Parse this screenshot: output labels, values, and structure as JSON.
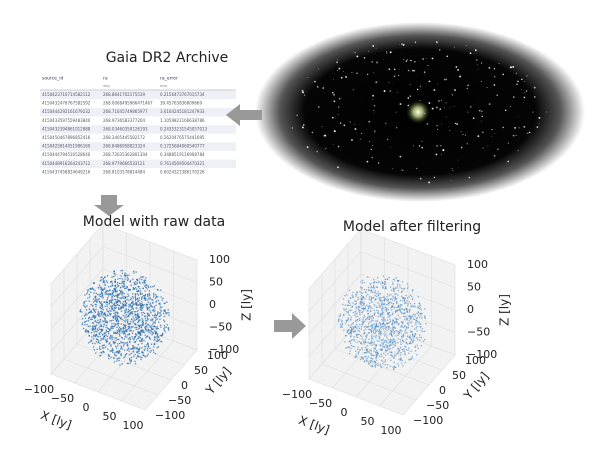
{
  "archive": {
    "title": "Gaia DR2 Archive",
    "table": {
      "headers": [
        "source_id",
        "ra",
        "ra_error"
      ],
      "units": [
        "",
        "deg",
        "mas"
      ],
      "rows": [
        [
          "4150423710714582112",
          "268.8641702175539",
          "0.2156473767015734"
        ],
        [
          "4150432476767582592",
          "268.0068495966471467",
          "39.45763836809669"
        ],
        [
          "4150444292161679232",
          "268.71645749865977",
          "3.6164245181247933"
        ],
        [
          "4150433597559483840",
          "268.9736583377204",
          "1.1059821166638786"
        ],
        [
          "4150432394861012888",
          "268.03460350126193",
          "0.24353231545057013"
        ],
        [
          "4150450467896852416",
          "268.3405445582172",
          "0.2620476575441695"
        ],
        [
          "4150425814051986160",
          "268.8486958823324",
          "0.1725684060540777"
        ],
        [
          "4150444794516528640",
          "268.72635362801304",
          "0.3488519116908784"
        ],
        [
          "4150448916264243712",
          "268.9779666533121",
          "0.7614569504470321"
        ],
        [
          "4150437458824649216",
          "268.8103578814484",
          "0.6024321386170226"
        ]
      ]
    }
  },
  "plots": [
    {
      "title": "Model with raw data",
      "x_label": "X [ly]",
      "y_label": "Y [ly]",
      "z_label": "Z [ly]",
      "x_ticks": [
        "−100",
        "−50",
        "0",
        "50",
        "100"
      ],
      "y_ticks": [
        "−100",
        "−50",
        "0",
        "50",
        "100"
      ],
      "z_ticks": [
        "−100",
        "−50",
        "0",
        "50",
        "100"
      ]
    },
    {
      "title": "Model after filtering",
      "x_label": "X [ly]",
      "y_label": "Y [ly]",
      "z_label": "Z [ly]",
      "x_ticks": [
        "−100",
        "−50",
        "0",
        "50",
        "100"
      ],
      "y_ticks": [
        "−100",
        "−50",
        "0",
        "50",
        "100"
      ],
      "z_ticks": [
        "−100",
        "−50",
        "0",
        "50",
        "100"
      ]
    }
  ]
}
